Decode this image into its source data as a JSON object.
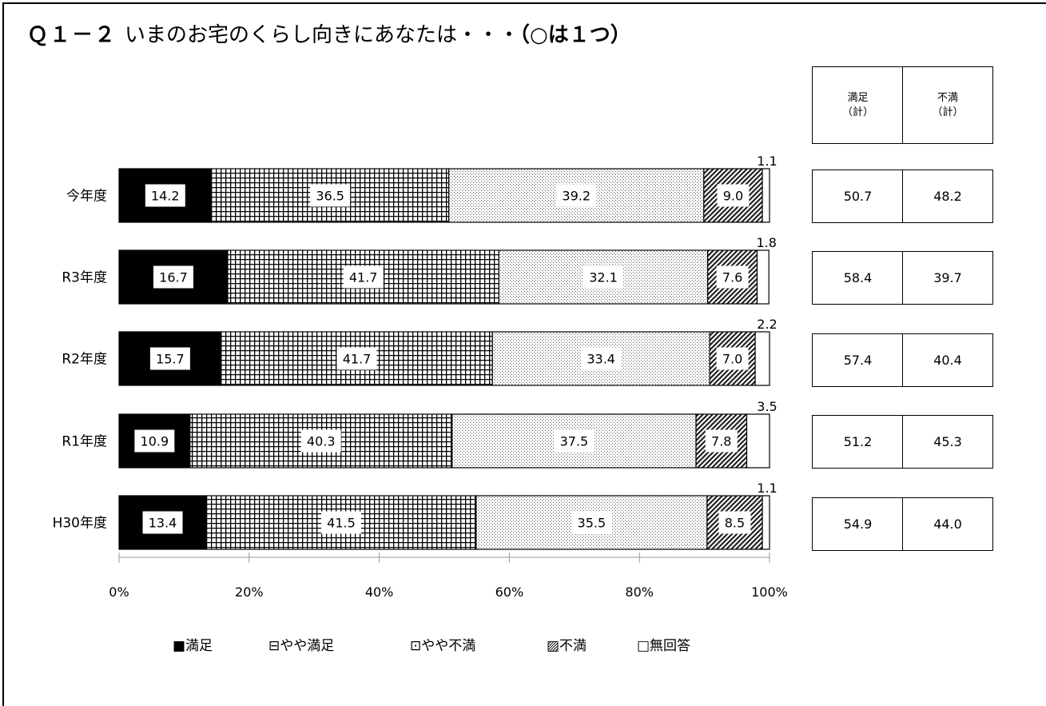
{
  "title": {
    "q_label": "Ｑ１－２",
    "question": "いまのお宅のくらし向きにあなたは・・・",
    "note": "（○は１つ）"
  },
  "summary_table": {
    "headers": [
      {
        "line1": "満足",
        "line2": "（計）"
      },
      {
        "line1": "不満",
        "line2": "（計）"
      }
    ],
    "rows": [
      {
        "satisfied_total": "50.7",
        "dissatisfied_total": "48.2"
      },
      {
        "satisfied_total": "58.4",
        "dissatisfied_total": "39.7"
      },
      {
        "satisfied_total": "57.4",
        "dissatisfied_total": "40.4"
      },
      {
        "satisfied_total": "51.2",
        "dissatisfied_total": "45.3"
      },
      {
        "satisfied_total": "54.9",
        "dissatisfied_total": "44.0"
      }
    ]
  },
  "colors": {
    "satisfied": "#000000",
    "somewhat_satisfied": "#000000",
    "somewhat_dissatisfied": "#555555",
    "dissatisfied": "#222222",
    "no_answer": "#ffffff"
  },
  "chart_data": {
    "type": "bar",
    "orientation": "horizontal",
    "stacked": "percent",
    "categories": [
      "今年度",
      "R3年度",
      "R2年度",
      "R1年度",
      "H30年度"
    ],
    "series": [
      {
        "name": "満足",
        "pattern": "solid-black",
        "values": [
          14.2,
          16.7,
          15.7,
          10.9,
          13.4
        ]
      },
      {
        "name": "やや満足",
        "pattern": "grid",
        "values": [
          36.5,
          41.7,
          41.7,
          40.3,
          41.5
        ]
      },
      {
        "name": "やや不満",
        "pattern": "dots",
        "values": [
          39.2,
          32.1,
          33.4,
          37.5,
          35.5
        ]
      },
      {
        "name": "不満",
        "pattern": "diagonal-hatch",
        "values": [
          9.0,
          7.6,
          7.0,
          7.8,
          8.5
        ]
      },
      {
        "name": "無回答",
        "pattern": "white",
        "values": [
          1.1,
          1.8,
          2.2,
          3.5,
          1.1
        ]
      }
    ],
    "xlim": [
      0,
      100
    ],
    "x_ticks": [
      "0%",
      "20%",
      "40%",
      "60%",
      "80%",
      "100%"
    ],
    "legend": {
      "position": "bottom",
      "labels": [
        "■満足",
        "⊟やや満足",
        "⊡やや不満",
        "▨不満",
        "□無回答"
      ]
    },
    "grid": false
  }
}
